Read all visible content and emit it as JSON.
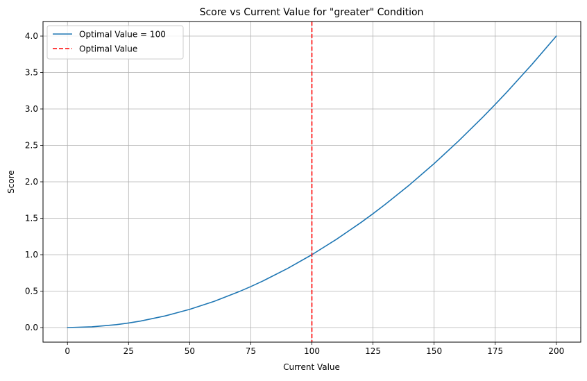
{
  "chart_data": {
    "type": "line",
    "title": "Score vs Current Value for \"greater\" Condition",
    "xlabel": "Current Value",
    "ylabel": "Score",
    "xlim": [
      -10,
      210
    ],
    "ylim": [
      -0.2,
      4.2
    ],
    "xticks": [
      0,
      25,
      50,
      75,
      100,
      125,
      150,
      175,
      200
    ],
    "xtick_labels": [
      "0",
      "25",
      "50",
      "75",
      "100",
      "125",
      "150",
      "175",
      "200"
    ],
    "yticks": [
      0.0,
      0.5,
      1.0,
      1.5,
      2.0,
      2.5,
      3.0,
      3.5,
      4.0
    ],
    "ytick_labels": [
      "0.0",
      "0.5",
      "1.0",
      "1.5",
      "2.0",
      "2.5",
      "3.0",
      "3.5",
      "4.0"
    ],
    "grid": true,
    "legend_position": "top-left",
    "series": [
      {
        "name": "Optimal Value = 100",
        "color": "#1f77b4",
        "style": "solid",
        "x": [
          0,
          10,
          20,
          25,
          30,
          40,
          50,
          60,
          70,
          75,
          80,
          90,
          100,
          110,
          120,
          125,
          130,
          140,
          150,
          160,
          170,
          175,
          180,
          190,
          200
        ],
        "y": [
          0.0,
          0.01,
          0.04,
          0.0625,
          0.09,
          0.16,
          0.25,
          0.36,
          0.49,
          0.5625,
          0.64,
          0.81,
          1.0,
          1.21,
          1.44,
          1.5625,
          1.69,
          1.96,
          2.25,
          2.56,
          2.89,
          3.0625,
          3.24,
          3.61,
          4.0
        ]
      }
    ],
    "reference_lines": [
      {
        "name": "Optimal Value",
        "orientation": "vertical",
        "x": 100,
        "color": "#ff0000",
        "style": "dashed"
      }
    ]
  }
}
